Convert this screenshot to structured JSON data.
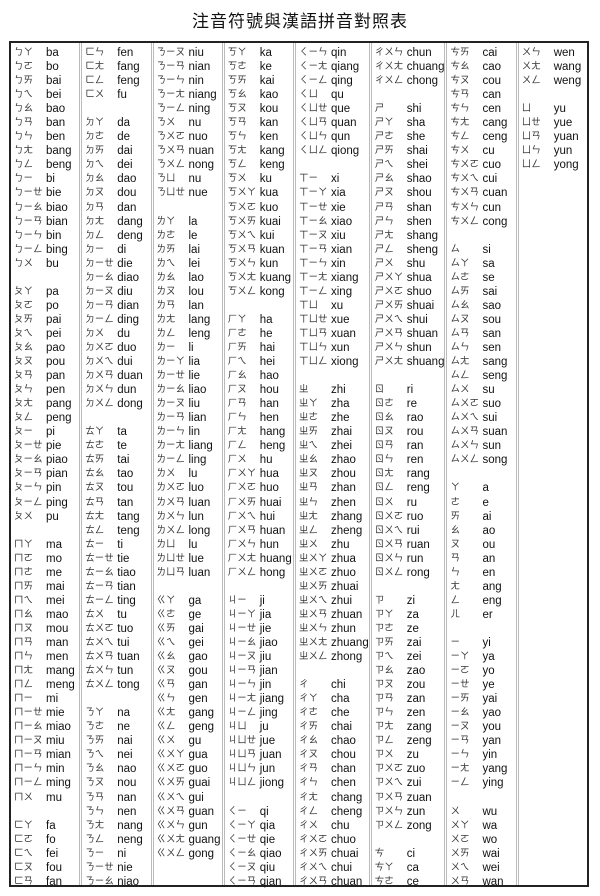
{
  "title": "注音符號與漢語拼音對照表",
  "columns": [
    [
      [
        "ㄅㄚ",
        "ba"
      ],
      [
        "ㄅㄛ",
        "bo"
      ],
      [
        "ㄅㄞ",
        "bai"
      ],
      [
        "ㄅㄟ",
        "bei"
      ],
      [
        "ㄅㄠ",
        "bao"
      ],
      [
        "ㄅㄢ",
        "ban"
      ],
      [
        "ㄅㄣ",
        "ben"
      ],
      [
        "ㄅㄤ",
        "bang"
      ],
      [
        "ㄅㄥ",
        "beng"
      ],
      [
        "ㄅㄧ",
        "bi"
      ],
      [
        "ㄅㄧㄝ",
        "bie"
      ],
      [
        "ㄅㄧㄠ",
        "biao"
      ],
      [
        "ㄅㄧㄢ",
        "bian"
      ],
      [
        "ㄅㄧㄣ",
        "bin"
      ],
      [
        "ㄅㄧㄥ",
        "bing"
      ],
      [
        "ㄅㄨ",
        "bu"
      ],
      null,
      [
        "ㄆㄚ",
        "pa"
      ],
      [
        "ㄆㄛ",
        "po"
      ],
      [
        "ㄆㄞ",
        "pai"
      ],
      [
        "ㄆㄟ",
        "pei"
      ],
      [
        "ㄆㄠ",
        "pao"
      ],
      [
        "ㄆㄡ",
        "pou"
      ],
      [
        "ㄆㄢ",
        "pan"
      ],
      [
        "ㄆㄣ",
        "pen"
      ],
      [
        "ㄆㄤ",
        "pang"
      ],
      [
        "ㄆㄥ",
        "peng"
      ],
      [
        "ㄆㄧ",
        "pi"
      ],
      [
        "ㄆㄧㄝ",
        "pie"
      ],
      [
        "ㄆㄧㄠ",
        "piao"
      ],
      [
        "ㄆㄧㄢ",
        "pian"
      ],
      [
        "ㄆㄧㄣ",
        "pin"
      ],
      [
        "ㄆㄧㄥ",
        "ping"
      ],
      [
        "ㄆㄨ",
        "pu"
      ],
      null,
      [
        "ㄇㄚ",
        "ma"
      ],
      [
        "ㄇㄛ",
        "mo"
      ],
      [
        "ㄇㄜ",
        "me"
      ],
      [
        "ㄇㄞ",
        "mai"
      ],
      [
        "ㄇㄟ",
        "mei"
      ],
      [
        "ㄇㄠ",
        "mao"
      ],
      [
        "ㄇㄡ",
        "mou"
      ],
      [
        "ㄇㄢ",
        "man"
      ],
      [
        "ㄇㄣ",
        "men"
      ],
      [
        "ㄇㄤ",
        "mang"
      ],
      [
        "ㄇㄥ",
        "meng"
      ],
      [
        "ㄇㄧ",
        "mi"
      ],
      [
        "ㄇㄧㄝ",
        "mie"
      ],
      [
        "ㄇㄧㄠ",
        "miao"
      ],
      [
        "ㄇㄧㄡ",
        "miu"
      ],
      [
        "ㄇㄧㄢ",
        "mian"
      ],
      [
        "ㄇㄧㄣ",
        "min"
      ],
      [
        "ㄇㄧㄥ",
        "ming"
      ],
      [
        "ㄇㄨ",
        "mu"
      ],
      null,
      [
        "ㄈㄚ",
        "fa"
      ],
      [
        "ㄈㄛ",
        "fo"
      ],
      [
        "ㄈㄟ",
        "fei"
      ],
      [
        "ㄈㄡ",
        "fou"
      ],
      [
        "ㄈㄢ",
        "fan"
      ]
    ],
    [
      [
        "ㄈㄣ",
        "fen"
      ],
      [
        "ㄈㄤ",
        "fang"
      ],
      [
        "ㄈㄥ",
        "feng"
      ],
      [
        "ㄈㄨ",
        "fu"
      ],
      null,
      [
        "ㄉㄚ",
        "da"
      ],
      [
        "ㄉㄜ",
        "de"
      ],
      [
        "ㄉㄞ",
        "dai"
      ],
      [
        "ㄉㄟ",
        "dei"
      ],
      [
        "ㄉㄠ",
        "dao"
      ],
      [
        "ㄉㄡ",
        "dou"
      ],
      [
        "ㄉㄢ",
        "dan"
      ],
      [
        "ㄉㄤ",
        "dang"
      ],
      [
        "ㄉㄥ",
        "deng"
      ],
      [
        "ㄉㄧ",
        "di"
      ],
      [
        "ㄉㄧㄝ",
        "die"
      ],
      [
        "ㄉㄧㄠ",
        "diao"
      ],
      [
        "ㄉㄧㄡ",
        "diu"
      ],
      [
        "ㄉㄧㄢ",
        "dian"
      ],
      [
        "ㄉㄧㄥ",
        "ding"
      ],
      [
        "ㄉㄨ",
        "du"
      ],
      [
        "ㄉㄨㄛ",
        "duo"
      ],
      [
        "ㄉㄨㄟ",
        "dui"
      ],
      [
        "ㄉㄨㄢ",
        "duan"
      ],
      [
        "ㄉㄨㄣ",
        "dun"
      ],
      [
        "ㄉㄨㄥ",
        "dong"
      ],
      null,
      [
        "ㄊㄚ",
        "ta"
      ],
      [
        "ㄊㄜ",
        "te"
      ],
      [
        "ㄊㄞ",
        "tai"
      ],
      [
        "ㄊㄠ",
        "tao"
      ],
      [
        "ㄊㄡ",
        "tou"
      ],
      [
        "ㄊㄢ",
        "tan"
      ],
      [
        "ㄊㄤ",
        "tang"
      ],
      [
        "ㄊㄥ",
        "teng"
      ],
      [
        "ㄊㄧ",
        "ti"
      ],
      [
        "ㄊㄧㄝ",
        "tie"
      ],
      [
        "ㄊㄧㄠ",
        "tiao"
      ],
      [
        "ㄊㄧㄢ",
        "tian"
      ],
      [
        "ㄊㄧㄥ",
        "ting"
      ],
      [
        "ㄊㄨ",
        "tu"
      ],
      [
        "ㄊㄨㄛ",
        "tuo"
      ],
      [
        "ㄊㄨㄟ",
        "tui"
      ],
      [
        "ㄊㄨㄢ",
        "tuan"
      ],
      [
        "ㄊㄨㄣ",
        "tun"
      ],
      [
        "ㄊㄨㄥ",
        "tong"
      ],
      null,
      [
        "ㄋㄚ",
        "na"
      ],
      [
        "ㄋㄜ",
        "ne"
      ],
      [
        "ㄋㄞ",
        "nai"
      ],
      [
        "ㄋㄟ",
        "nei"
      ],
      [
        "ㄋㄠ",
        "nao"
      ],
      [
        "ㄋㄡ",
        "nou"
      ],
      [
        "ㄋㄢ",
        "nan"
      ],
      [
        "ㄋㄣ",
        "nen"
      ],
      [
        "ㄋㄤ",
        "nang"
      ],
      [
        "ㄋㄥ",
        "neng"
      ],
      [
        "ㄋㄧ",
        "ni"
      ],
      [
        "ㄋㄧㄝ",
        "nie"
      ],
      [
        "ㄋㄧㄠ",
        "niao"
      ]
    ],
    [
      [
        "ㄋㄧㄡ",
        "niu"
      ],
      [
        "ㄋㄧㄢ",
        "nian"
      ],
      [
        "ㄋㄧㄣ",
        "nin"
      ],
      [
        "ㄋㄧㄤ",
        "niang"
      ],
      [
        "ㄋㄧㄥ",
        "ning"
      ],
      [
        "ㄋㄨ",
        "nu"
      ],
      [
        "ㄋㄨㄛ",
        "nuo"
      ],
      [
        "ㄋㄨㄢ",
        "nuan"
      ],
      [
        "ㄋㄨㄥ",
        "nong"
      ],
      [
        "ㄋㄩ",
        "nu"
      ],
      [
        "ㄋㄩㄝ",
        "nue"
      ],
      null,
      [
        "ㄌㄚ",
        "la"
      ],
      [
        "ㄌㄜ",
        "le"
      ],
      [
        "ㄌㄞ",
        "lai"
      ],
      [
        "ㄌㄟ",
        "lei"
      ],
      [
        "ㄌㄠ",
        "lao"
      ],
      [
        "ㄌㄡ",
        "lou"
      ],
      [
        "ㄌㄢ",
        "lan"
      ],
      [
        "ㄌㄤ",
        "lang"
      ],
      [
        "ㄌㄥ",
        "leng"
      ],
      [
        "ㄌㄧ",
        "li"
      ],
      [
        "ㄌㄧㄚ",
        "lia"
      ],
      [
        "ㄌㄧㄝ",
        "lie"
      ],
      [
        "ㄌㄧㄠ",
        "liao"
      ],
      [
        "ㄌㄧㄡ",
        "liu"
      ],
      [
        "ㄌㄧㄢ",
        "lian"
      ],
      [
        "ㄌㄧㄣ",
        "lin"
      ],
      [
        "ㄌㄧㄤ",
        "liang"
      ],
      [
        "ㄌㄧㄥ",
        "ling"
      ],
      [
        "ㄌㄨ",
        "lu"
      ],
      [
        "ㄌㄨㄛ",
        "luo"
      ],
      [
        "ㄌㄨㄢ",
        "luan"
      ],
      [
        "ㄌㄨㄣ",
        "lun"
      ],
      [
        "ㄌㄨㄥ",
        "long"
      ],
      [
        "ㄌㄩ",
        "lu"
      ],
      [
        "ㄌㄩㄝ",
        "lue"
      ],
      [
        "ㄌㄩㄢ",
        "luan"
      ],
      null,
      [
        "ㄍㄚ",
        "ga"
      ],
      [
        "ㄍㄜ",
        "ge"
      ],
      [
        "ㄍㄞ",
        "gai"
      ],
      [
        "ㄍㄟ",
        "gei"
      ],
      [
        "ㄍㄠ",
        "gao"
      ],
      [
        "ㄍㄡ",
        "gou"
      ],
      [
        "ㄍㄢ",
        "gan"
      ],
      [
        "ㄍㄣ",
        "gen"
      ],
      [
        "ㄍㄤ",
        "gang"
      ],
      [
        "ㄍㄥ",
        "geng"
      ],
      [
        "ㄍㄨ",
        "gu"
      ],
      [
        "ㄍㄨㄚ",
        "gua"
      ],
      [
        "ㄍㄨㄛ",
        "guo"
      ],
      [
        "ㄍㄨㄞ",
        "guai"
      ],
      [
        "ㄍㄨㄟ",
        "gui"
      ],
      [
        "ㄍㄨㄢ",
        "guan"
      ],
      [
        "ㄍㄨㄣ",
        "gun"
      ],
      [
        "ㄍㄨㄤ",
        "guang"
      ],
      [
        "ㄍㄨㄥ",
        "gong"
      ],
      null,
      null
    ],
    [
      [
        "ㄎㄚ",
        "ka"
      ],
      [
        "ㄎㄜ",
        "ke"
      ],
      [
        "ㄎㄞ",
        "kai"
      ],
      [
        "ㄎㄠ",
        "kao"
      ],
      [
        "ㄎㄡ",
        "kou"
      ],
      [
        "ㄎㄢ",
        "kan"
      ],
      [
        "ㄎㄣ",
        "ken"
      ],
      [
        "ㄎㄤ",
        "kang"
      ],
      [
        "ㄎㄥ",
        "keng"
      ],
      [
        "ㄎㄨ",
        "ku"
      ],
      [
        "ㄎㄨㄚ",
        "kua"
      ],
      [
        "ㄎㄨㄛ",
        "kuo"
      ],
      [
        "ㄎㄨㄞ",
        "kuai"
      ],
      [
        "ㄎㄨㄟ",
        "kui"
      ],
      [
        "ㄎㄨㄢ",
        "kuan"
      ],
      [
        "ㄎㄨㄣ",
        "kun"
      ],
      [
        "ㄎㄨㄤ",
        "kuang"
      ],
      [
        "ㄎㄨㄥ",
        "kong"
      ],
      null,
      [
        "ㄏㄚ",
        "ha"
      ],
      [
        "ㄏㄜ",
        "he"
      ],
      [
        "ㄏㄞ",
        "hai"
      ],
      [
        "ㄏㄟ",
        "hei"
      ],
      [
        "ㄏㄠ",
        "hao"
      ],
      [
        "ㄏㄡ",
        "hou"
      ],
      [
        "ㄏㄢ",
        "han"
      ],
      [
        "ㄏㄣ",
        "hen"
      ],
      [
        "ㄏㄤ",
        "hang"
      ],
      [
        "ㄏㄥ",
        "heng"
      ],
      [
        "ㄏㄨ",
        "hu"
      ],
      [
        "ㄏㄨㄚ",
        "hua"
      ],
      [
        "ㄏㄨㄛ",
        "huo"
      ],
      [
        "ㄏㄨㄞ",
        "huai"
      ],
      [
        "ㄏㄨㄟ",
        "hui"
      ],
      [
        "ㄏㄨㄢ",
        "huan"
      ],
      [
        "ㄏㄨㄣ",
        "hun"
      ],
      [
        "ㄏㄨㄤ",
        "huang"
      ],
      [
        "ㄏㄨㄥ",
        "hong"
      ],
      null,
      [
        "ㄐㄧ",
        "ji"
      ],
      [
        "ㄐㄧㄚ",
        "jia"
      ],
      [
        "ㄐㄧㄝ",
        "jie"
      ],
      [
        "ㄐㄧㄠ",
        "jiao"
      ],
      [
        "ㄐㄧㄡ",
        "jiu"
      ],
      [
        "ㄐㄧㄢ",
        "jian"
      ],
      [
        "ㄐㄧㄣ",
        "jin"
      ],
      [
        "ㄐㄧㄤ",
        "jiang"
      ],
      [
        "ㄐㄧㄥ",
        "jing"
      ],
      [
        "ㄐㄩ",
        "ju"
      ],
      [
        "ㄐㄩㄝ",
        "jue"
      ],
      [
        "ㄐㄩㄢ",
        "juan"
      ],
      [
        "ㄐㄩㄣ",
        "jun"
      ],
      [
        "ㄐㄩㄥ",
        "jiong"
      ],
      null,
      [
        "ㄑㄧ",
        "qi"
      ],
      [
        "ㄑㄧㄚ",
        "qia"
      ],
      [
        "ㄑㄧㄝ",
        "qie"
      ],
      [
        "ㄑㄧㄠ",
        "qiao"
      ],
      [
        "ㄑㄧㄡ",
        "qiu"
      ],
      [
        "ㄑㄧㄢ",
        "qian"
      ]
    ],
    [
      [
        "ㄑㄧㄣ",
        "qin"
      ],
      [
        "ㄑㄧㄤ",
        "qiang"
      ],
      [
        "ㄑㄧㄥ",
        "qing"
      ],
      [
        "ㄑㄩ",
        "qu"
      ],
      [
        "ㄑㄩㄝ",
        "que"
      ],
      [
        "ㄑㄩㄢ",
        "quan"
      ],
      [
        "ㄑㄩㄣ",
        "qun"
      ],
      [
        "ㄑㄩㄥ",
        "qiong"
      ],
      null,
      [
        "ㄒㄧ",
        "xi"
      ],
      [
        "ㄒㄧㄚ",
        "xia"
      ],
      [
        "ㄒㄧㄝ",
        "xie"
      ],
      [
        "ㄒㄧㄠ",
        "xiao"
      ],
      [
        "ㄒㄧㄡ",
        "xiu"
      ],
      [
        "ㄒㄧㄢ",
        "xian"
      ],
      [
        "ㄒㄧㄣ",
        "xin"
      ],
      [
        "ㄒㄧㄤ",
        "xiang"
      ],
      [
        "ㄒㄧㄥ",
        "xing"
      ],
      [
        "ㄒㄩ",
        "xu"
      ],
      [
        "ㄒㄩㄝ",
        "xue"
      ],
      [
        "ㄒㄩㄢ",
        "xuan"
      ],
      [
        "ㄒㄩㄣ",
        "xun"
      ],
      [
        "ㄒㄩㄥ",
        "xiong"
      ],
      null,
      [
        "ㄓ",
        "zhi"
      ],
      [
        "ㄓㄚ",
        "zha"
      ],
      [
        "ㄓㄜ",
        "zhe"
      ],
      [
        "ㄓㄞ",
        "zhai"
      ],
      [
        "ㄓㄟ",
        "zhei"
      ],
      [
        "ㄓㄠ",
        "zhao"
      ],
      [
        "ㄓㄡ",
        "zhou"
      ],
      [
        "ㄓㄢ",
        "zhan"
      ],
      [
        "ㄓㄣ",
        "zhen"
      ],
      [
        "ㄓㄤ",
        "zhang"
      ],
      [
        "ㄓㄥ",
        "zheng"
      ],
      [
        "ㄓㄨ",
        "zhu"
      ],
      [
        "ㄓㄨㄚ",
        "zhua"
      ],
      [
        "ㄓㄨㄛ",
        "zhuo"
      ],
      [
        "ㄓㄨㄞ",
        "zhuai"
      ],
      [
        "ㄓㄨㄟ",
        "zhui"
      ],
      [
        "ㄓㄨㄢ",
        "zhuan"
      ],
      [
        "ㄓㄨㄣ",
        "zhun"
      ],
      [
        "ㄓㄨㄤ",
        "zhuang"
      ],
      [
        "ㄓㄨㄥ",
        "zhong"
      ],
      null,
      [
        "ㄔ",
        "chi"
      ],
      [
        "ㄔㄚ",
        "cha"
      ],
      [
        "ㄔㄜ",
        "che"
      ],
      [
        "ㄔㄞ",
        "chai"
      ],
      [
        "ㄔㄠ",
        "chao"
      ],
      [
        "ㄔㄡ",
        "chou"
      ],
      [
        "ㄔㄢ",
        "chan"
      ],
      [
        "ㄔㄣ",
        "chen"
      ],
      [
        "ㄔㄤ",
        "chang"
      ],
      [
        "ㄔㄥ",
        "cheng"
      ],
      [
        "ㄔㄨ",
        "chu"
      ],
      [
        "ㄔㄨㄛ",
        "chuo"
      ],
      [
        "ㄔㄨㄞ",
        "chuai"
      ],
      [
        "ㄔㄨㄟ",
        "chui"
      ],
      [
        "ㄔㄨㄢ",
        "chuan"
      ]
    ],
    [
      [
        "ㄔㄨㄣ",
        "chun"
      ],
      [
        "ㄔㄨㄤ",
        "chuang"
      ],
      [
        "ㄔㄨㄥ",
        "chong"
      ],
      null,
      [
        "ㄕ",
        "shi"
      ],
      [
        "ㄕㄚ",
        "sha"
      ],
      [
        "ㄕㄜ",
        "she"
      ],
      [
        "ㄕㄞ",
        "shai"
      ],
      [
        "ㄕㄟ",
        "shei"
      ],
      [
        "ㄕㄠ",
        "shao"
      ],
      [
        "ㄕㄡ",
        "shou"
      ],
      [
        "ㄕㄢ",
        "shan"
      ],
      [
        "ㄕㄣ",
        "shen"
      ],
      [
        "ㄕㄤ",
        "shang"
      ],
      [
        "ㄕㄥ",
        "sheng"
      ],
      [
        "ㄕㄨ",
        "shu"
      ],
      [
        "ㄕㄨㄚ",
        "shua"
      ],
      [
        "ㄕㄨㄛ",
        "shuo"
      ],
      [
        "ㄕㄨㄞ",
        "shuai"
      ],
      [
        "ㄕㄨㄟ",
        "shui"
      ],
      [
        "ㄕㄨㄢ",
        "shuan"
      ],
      [
        "ㄕㄨㄣ",
        "shun"
      ],
      [
        "ㄕㄨㄤ",
        "shuang"
      ],
      null,
      [
        "ㄖ",
        "ri"
      ],
      [
        "ㄖㄜ",
        "re"
      ],
      [
        "ㄖㄠ",
        "rao"
      ],
      [
        "ㄖㄡ",
        "rou"
      ],
      [
        "ㄖㄢ",
        "ran"
      ],
      [
        "ㄖㄣ",
        "ren"
      ],
      [
        "ㄖㄤ",
        "rang"
      ],
      [
        "ㄖㄥ",
        "reng"
      ],
      [
        "ㄖㄨ",
        "ru"
      ],
      [
        "ㄖㄨㄛ",
        "ruo"
      ],
      [
        "ㄖㄨㄟ",
        "rui"
      ],
      [
        "ㄖㄨㄢ",
        "ruan"
      ],
      [
        "ㄖㄨㄣ",
        "run"
      ],
      [
        "ㄖㄨㄥ",
        "rong"
      ],
      null,
      [
        "ㄗ",
        "zi"
      ],
      [
        "ㄗㄚ",
        "za"
      ],
      [
        "ㄗㄜ",
        "ze"
      ],
      [
        "ㄗㄞ",
        "zai"
      ],
      [
        "ㄗㄟ",
        "zei"
      ],
      [
        "ㄗㄠ",
        "zao"
      ],
      [
        "ㄗㄡ",
        "zou"
      ],
      [
        "ㄗㄢ",
        "zan"
      ],
      [
        "ㄗㄣ",
        "zen"
      ],
      [
        "ㄗㄤ",
        "zang"
      ],
      [
        "ㄗㄥ",
        "zeng"
      ],
      [
        "ㄗㄨ",
        "zu"
      ],
      [
        "ㄗㄨㄛ",
        "zuo"
      ],
      [
        "ㄗㄨㄟ",
        "zui"
      ],
      [
        "ㄗㄨㄢ",
        "zuan"
      ],
      [
        "ㄗㄨㄣ",
        "zun"
      ],
      [
        "ㄗㄨㄥ",
        "zong"
      ],
      null,
      [
        "ㄘ",
        "ci"
      ],
      [
        "ㄘㄚ",
        "ca"
      ],
      [
        "ㄘㄜ",
        "ce"
      ]
    ],
    [
      [
        "ㄘㄞ",
        "cai"
      ],
      [
        "ㄘㄠ",
        "cao"
      ],
      [
        "ㄘㄡ",
        "cou"
      ],
      [
        "ㄘㄢ",
        "can"
      ],
      [
        "ㄘㄣ",
        "cen"
      ],
      [
        "ㄘㄤ",
        "cang"
      ],
      [
        "ㄘㄥ",
        "ceng"
      ],
      [
        "ㄘㄨ",
        "cu"
      ],
      [
        "ㄘㄨㄛ",
        "cuo"
      ],
      [
        "ㄘㄨㄟ",
        "cui"
      ],
      [
        "ㄘㄨㄢ",
        "cuan"
      ],
      [
        "ㄘㄨㄣ",
        "cun"
      ],
      [
        "ㄘㄨㄥ",
        "cong"
      ],
      null,
      [
        "ㄙ",
        "si"
      ],
      [
        "ㄙㄚ",
        "sa"
      ],
      [
        "ㄙㄜ",
        "se"
      ],
      [
        "ㄙㄞ",
        "sai"
      ],
      [
        "ㄙㄠ",
        "sao"
      ],
      [
        "ㄙㄡ",
        "sou"
      ],
      [
        "ㄙㄢ",
        "san"
      ],
      [
        "ㄙㄣ",
        "sen"
      ],
      [
        "ㄙㄤ",
        "sang"
      ],
      [
        "ㄙㄥ",
        "seng"
      ],
      [
        "ㄙㄨ",
        "su"
      ],
      [
        "ㄙㄨㄛ",
        "suo"
      ],
      [
        "ㄙㄨㄟ",
        "sui"
      ],
      [
        "ㄙㄨㄢ",
        "suan"
      ],
      [
        "ㄙㄨㄣ",
        "sun"
      ],
      [
        "ㄙㄨㄥ",
        "song"
      ],
      null,
      [
        "ㄚ",
        "a"
      ],
      [
        "ㄜ",
        "e"
      ],
      [
        "ㄞ",
        "ai"
      ],
      [
        "ㄠ",
        "ao"
      ],
      [
        "ㄡ",
        "ou"
      ],
      [
        "ㄢ",
        "an"
      ],
      [
        "ㄣ",
        "en"
      ],
      [
        "ㄤ",
        "ang"
      ],
      [
        "ㄥ",
        "eng"
      ],
      [
        "ㄦ",
        "er"
      ],
      null,
      [
        "ㄧ",
        "yi"
      ],
      [
        "ㄧㄚ",
        "ya"
      ],
      [
        "ㄧㄛ",
        "yo"
      ],
      [
        "ㄧㄝ",
        "ye"
      ],
      [
        "ㄧㄞ",
        "yai"
      ],
      [
        "ㄧㄠ",
        "yao"
      ],
      [
        "ㄧㄡ",
        "you"
      ],
      [
        "ㄧㄢ",
        "yan"
      ],
      [
        "ㄧㄣ",
        "yin"
      ],
      [
        "ㄧㄤ",
        "yang"
      ],
      [
        "ㄧㄥ",
        "ying"
      ],
      null,
      [
        "ㄨ",
        "wu"
      ],
      [
        "ㄨㄚ",
        "wa"
      ],
      [
        "ㄨㄛ",
        "wo"
      ],
      [
        "ㄨㄞ",
        "wai"
      ],
      [
        "ㄨㄟ",
        "wei"
      ],
      [
        "ㄨㄢ",
        "wan"
      ]
    ],
    [
      [
        "ㄨㄣ",
        "wen"
      ],
      [
        "ㄨㄤ",
        "wang"
      ],
      [
        "ㄨㄥ",
        "weng"
      ],
      null,
      [
        "ㄩ",
        "yu"
      ],
      [
        "ㄩㄝ",
        "yue"
      ],
      [
        "ㄩㄢ",
        "yuan"
      ],
      [
        "ㄩㄣ",
        "yun"
      ],
      [
        "ㄩㄥ",
        "yong"
      ]
    ]
  ]
}
